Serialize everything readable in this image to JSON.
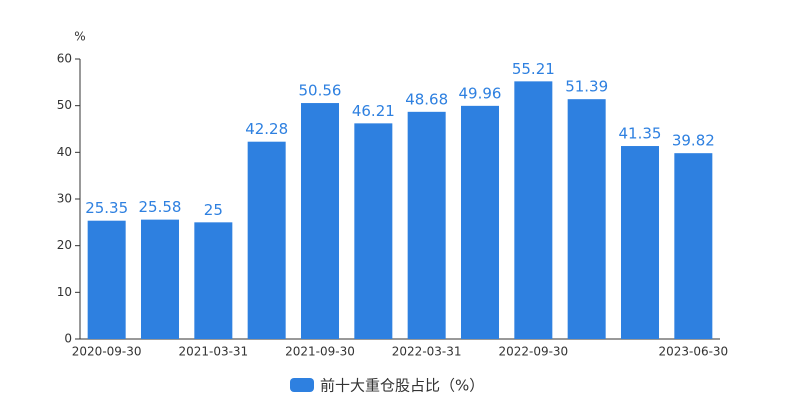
{
  "chart_data": {
    "type": "bar",
    "y_unit": "%",
    "categories": [
      "2020-09-30",
      null,
      "2021-03-31",
      null,
      "2021-09-30",
      null,
      "2022-03-31",
      null,
      "2022-09-30",
      null,
      null,
      "2023-06-30"
    ],
    "series": [
      {
        "name": "前十大重仓股占比（%）",
        "color": "#2e80e0",
        "values": [
          25.35,
          25.58,
          25,
          42.28,
          50.56,
          46.21,
          48.68,
          49.96,
          55.21,
          51.39,
          41.35,
          39.82
        ]
      }
    ],
    "ylim": [
      0,
      60
    ],
    "yticks": [
      0,
      10,
      20,
      30,
      40,
      50,
      60
    ],
    "grid": false,
    "legend": "bottom"
  }
}
